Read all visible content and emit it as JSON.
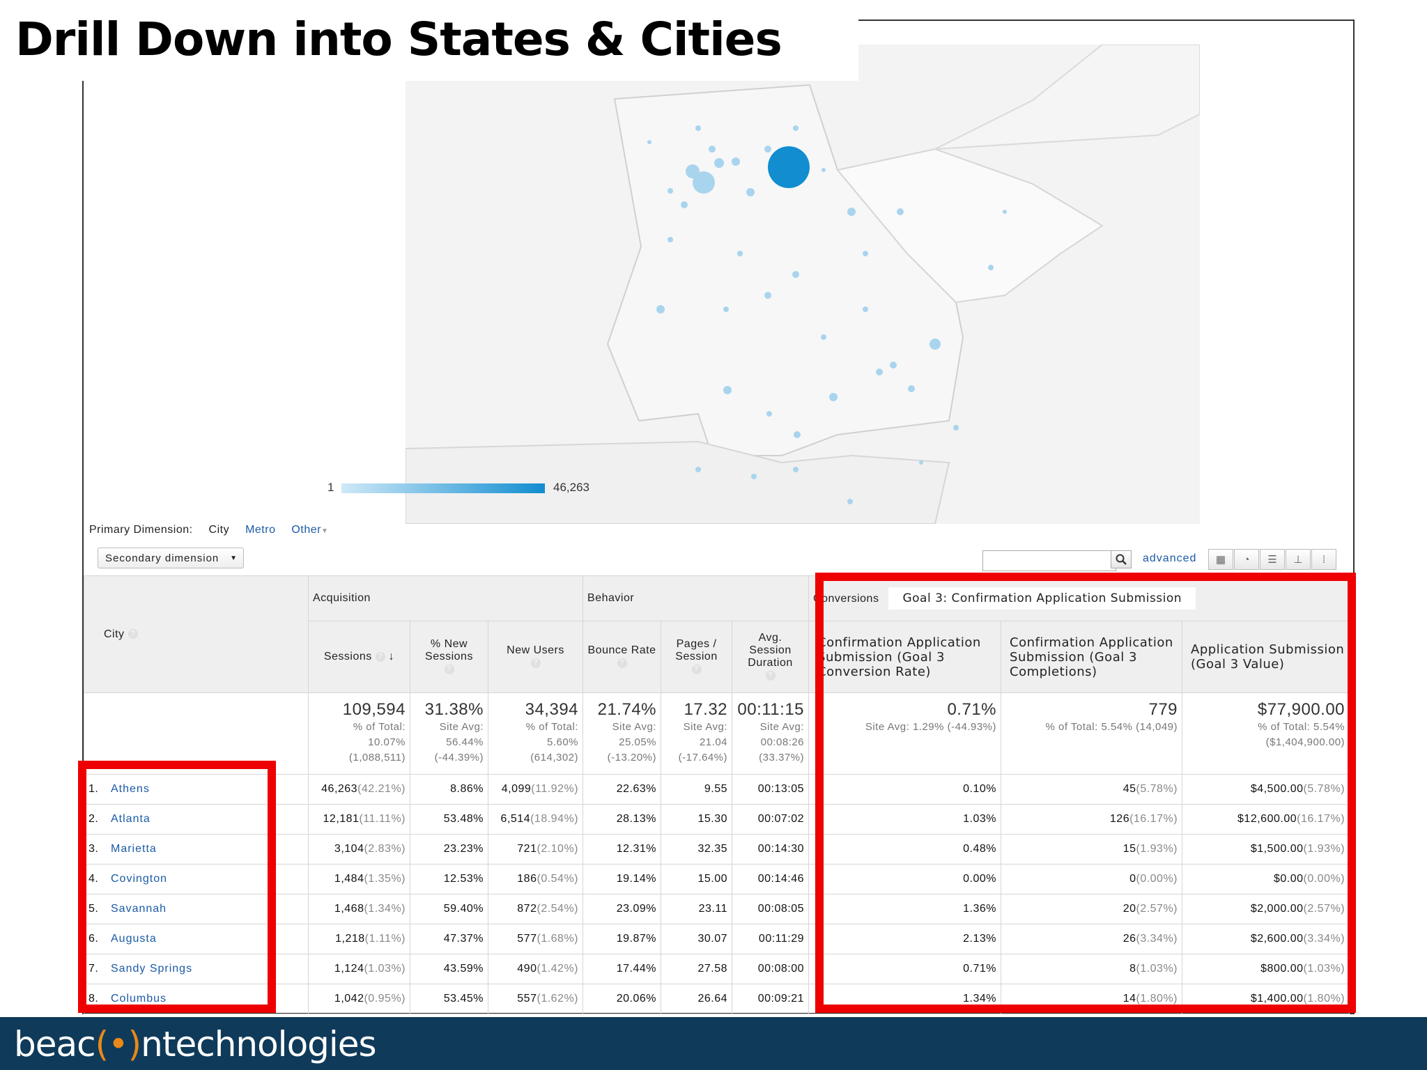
{
  "slide": {
    "title": "Drill Down into States & Cities",
    "footer_logo_a": "beac",
    "footer_logo_o": "(•)",
    "footer_logo_b": "ntechnologies"
  },
  "map": {
    "legend_min": "1",
    "legend_max": "46,263",
    "legend_color_low": "#cfe9f7",
    "legend_color_high": "#118dd0"
  },
  "dimensions": {
    "label": "Primary Dimension:",
    "current": "City",
    "metro": "Metro",
    "other": "Other",
    "secondary": "Secondary dimension",
    "advanced": "advanced",
    "search_value": ""
  },
  "table": {
    "city_header": "City",
    "groups": {
      "acquisition": "Acquisition",
      "behavior": "Behavior",
      "conversions": "Conversions",
      "goal_select": "Goal 3: Confirmation Application Submission"
    },
    "columns": {
      "sessions": "Sessions",
      "new_sessions": "% New Sessions",
      "new_users": "New Users",
      "bounce_rate": "Bounce Rate",
      "pages_session": "Pages / Session",
      "avg_duration": "Avg. Session Duration",
      "conv_rate": "Confirmation Application Submission (Goal 3 Conversion Rate)",
      "completions": "Confirmation Application Submission (Goal 3 Completions)",
      "value": "Application Submission (Goal 3 Value)"
    },
    "summary": {
      "sessions": {
        "big": "109,594",
        "l1": "% of Total:",
        "l2": "10.07%",
        "l3": "(1,088,511)"
      },
      "new_sessions": {
        "big": "31.38%",
        "l1": "Site Avg:",
        "l2": "56.44%",
        "l3": "(-44.39%)"
      },
      "new_users": {
        "big": "34,394",
        "l1": "% of Total:",
        "l2": "5.60%",
        "l3": "(614,302)"
      },
      "bounce_rate": {
        "big": "21.74%",
        "l1": "Site Avg:",
        "l2": "25.05%",
        "l3": "(-13.20%)"
      },
      "pages_session": {
        "big": "17.32",
        "l1": "Site Avg:",
        "l2": "21.04",
        "l3": "(-17.64%)"
      },
      "avg_duration": {
        "big": "00:11:15",
        "l1": "Site Avg:",
        "l2": "00:08:26",
        "l3": "(33.37%)"
      },
      "conv_rate": {
        "big": "0.71%",
        "l1": "Site Avg: 1.29% (-44.93%)"
      },
      "completions": {
        "big": "779",
        "l1": "% of Total: 5.54% (14,049)"
      },
      "value": {
        "big": "$77,900.00",
        "l1": "% of Total: 5.54%",
        "l2": "($1,404,900.00)"
      }
    },
    "rows": [
      {
        "n": "1.",
        "city": "Athens",
        "sessions": "46,263",
        "sessions_pct": "(42.21%)",
        "new_sessions": "8.86%",
        "new_users": "4,099",
        "new_users_pct": "(11.92%)",
        "bounce": "22.63%",
        "pages": "9.55",
        "duration": "00:13:05",
        "conv": "0.10%",
        "comp": "45",
        "comp_pct": "(5.78%)",
        "value": "$4,500.00",
        "value_pct": "(5.78%)"
      },
      {
        "n": "2.",
        "city": "Atlanta",
        "sessions": "12,181",
        "sessions_pct": "(11.11%)",
        "new_sessions": "53.48%",
        "new_users": "6,514",
        "new_users_pct": "(18.94%)",
        "bounce": "28.13%",
        "pages": "15.30",
        "duration": "00:07:02",
        "conv": "1.03%",
        "comp": "126",
        "comp_pct": "(16.17%)",
        "value": "$12,600.00",
        "value_pct": "(16.17%)"
      },
      {
        "n": "3.",
        "city": "Marietta",
        "sessions": "3,104",
        "sessions_pct": "(2.83%)",
        "new_sessions": "23.23%",
        "new_users": "721",
        "new_users_pct": "(2.10%)",
        "bounce": "12.31%",
        "pages": "32.35",
        "duration": "00:14:30",
        "conv": "0.48%",
        "comp": "15",
        "comp_pct": "(1.93%)",
        "value": "$1,500.00",
        "value_pct": "(1.93%)"
      },
      {
        "n": "4.",
        "city": "Covington",
        "sessions": "1,484",
        "sessions_pct": "(1.35%)",
        "new_sessions": "12.53%",
        "new_users": "186",
        "new_users_pct": "(0.54%)",
        "bounce": "19.14%",
        "pages": "15.00",
        "duration": "00:14:46",
        "conv": "0.00%",
        "comp": "0",
        "comp_pct": "(0.00%)",
        "value": "$0.00",
        "value_pct": "(0.00%)"
      },
      {
        "n": "5.",
        "city": "Savannah",
        "sessions": "1,468",
        "sessions_pct": "(1.34%)",
        "new_sessions": "59.40%",
        "new_users": "872",
        "new_users_pct": "(2.54%)",
        "bounce": "23.09%",
        "pages": "23.11",
        "duration": "00:08:05",
        "conv": "1.36%",
        "comp": "20",
        "comp_pct": "(2.57%)",
        "value": "$2,000.00",
        "value_pct": "(2.57%)"
      },
      {
        "n": "6.",
        "city": "Augusta",
        "sessions": "1,218",
        "sessions_pct": "(1.11%)",
        "new_sessions": "47.37%",
        "new_users": "577",
        "new_users_pct": "(1.68%)",
        "bounce": "19.87%",
        "pages": "30.07",
        "duration": "00:11:29",
        "conv": "2.13%",
        "comp": "26",
        "comp_pct": "(3.34%)",
        "value": "$2,600.00",
        "value_pct": "(3.34%)"
      },
      {
        "n": "7.",
        "city": "Sandy Springs",
        "sessions": "1,124",
        "sessions_pct": "(1.03%)",
        "new_sessions": "43.59%",
        "new_users": "490",
        "new_users_pct": "(1.42%)",
        "bounce": "17.44%",
        "pages": "27.58",
        "duration": "00:08:00",
        "conv": "0.71%",
        "comp": "8",
        "comp_pct": "(1.03%)",
        "value": "$800.00",
        "value_pct": "(1.03%)"
      },
      {
        "n": "8.",
        "city": "Columbus",
        "sessions": "1,042",
        "sessions_pct": "(0.95%)",
        "new_sessions": "53.45%",
        "new_users": "557",
        "new_users_pct": "(1.62%)",
        "bounce": "20.06%",
        "pages": "26.64",
        "duration": "00:09:21",
        "conv": "1.34%",
        "comp": "14",
        "comp_pct": "(1.80%)",
        "value": "$1,400.00",
        "value_pct": "(1.80%)"
      }
    ]
  },
  "colors": {
    "highlight": "#ee0000",
    "link": "#1a5aa6",
    "footer": "#0f3a5a",
    "bubble": "#a9d4ee",
    "bubble_big": "#118dd0"
  }
}
